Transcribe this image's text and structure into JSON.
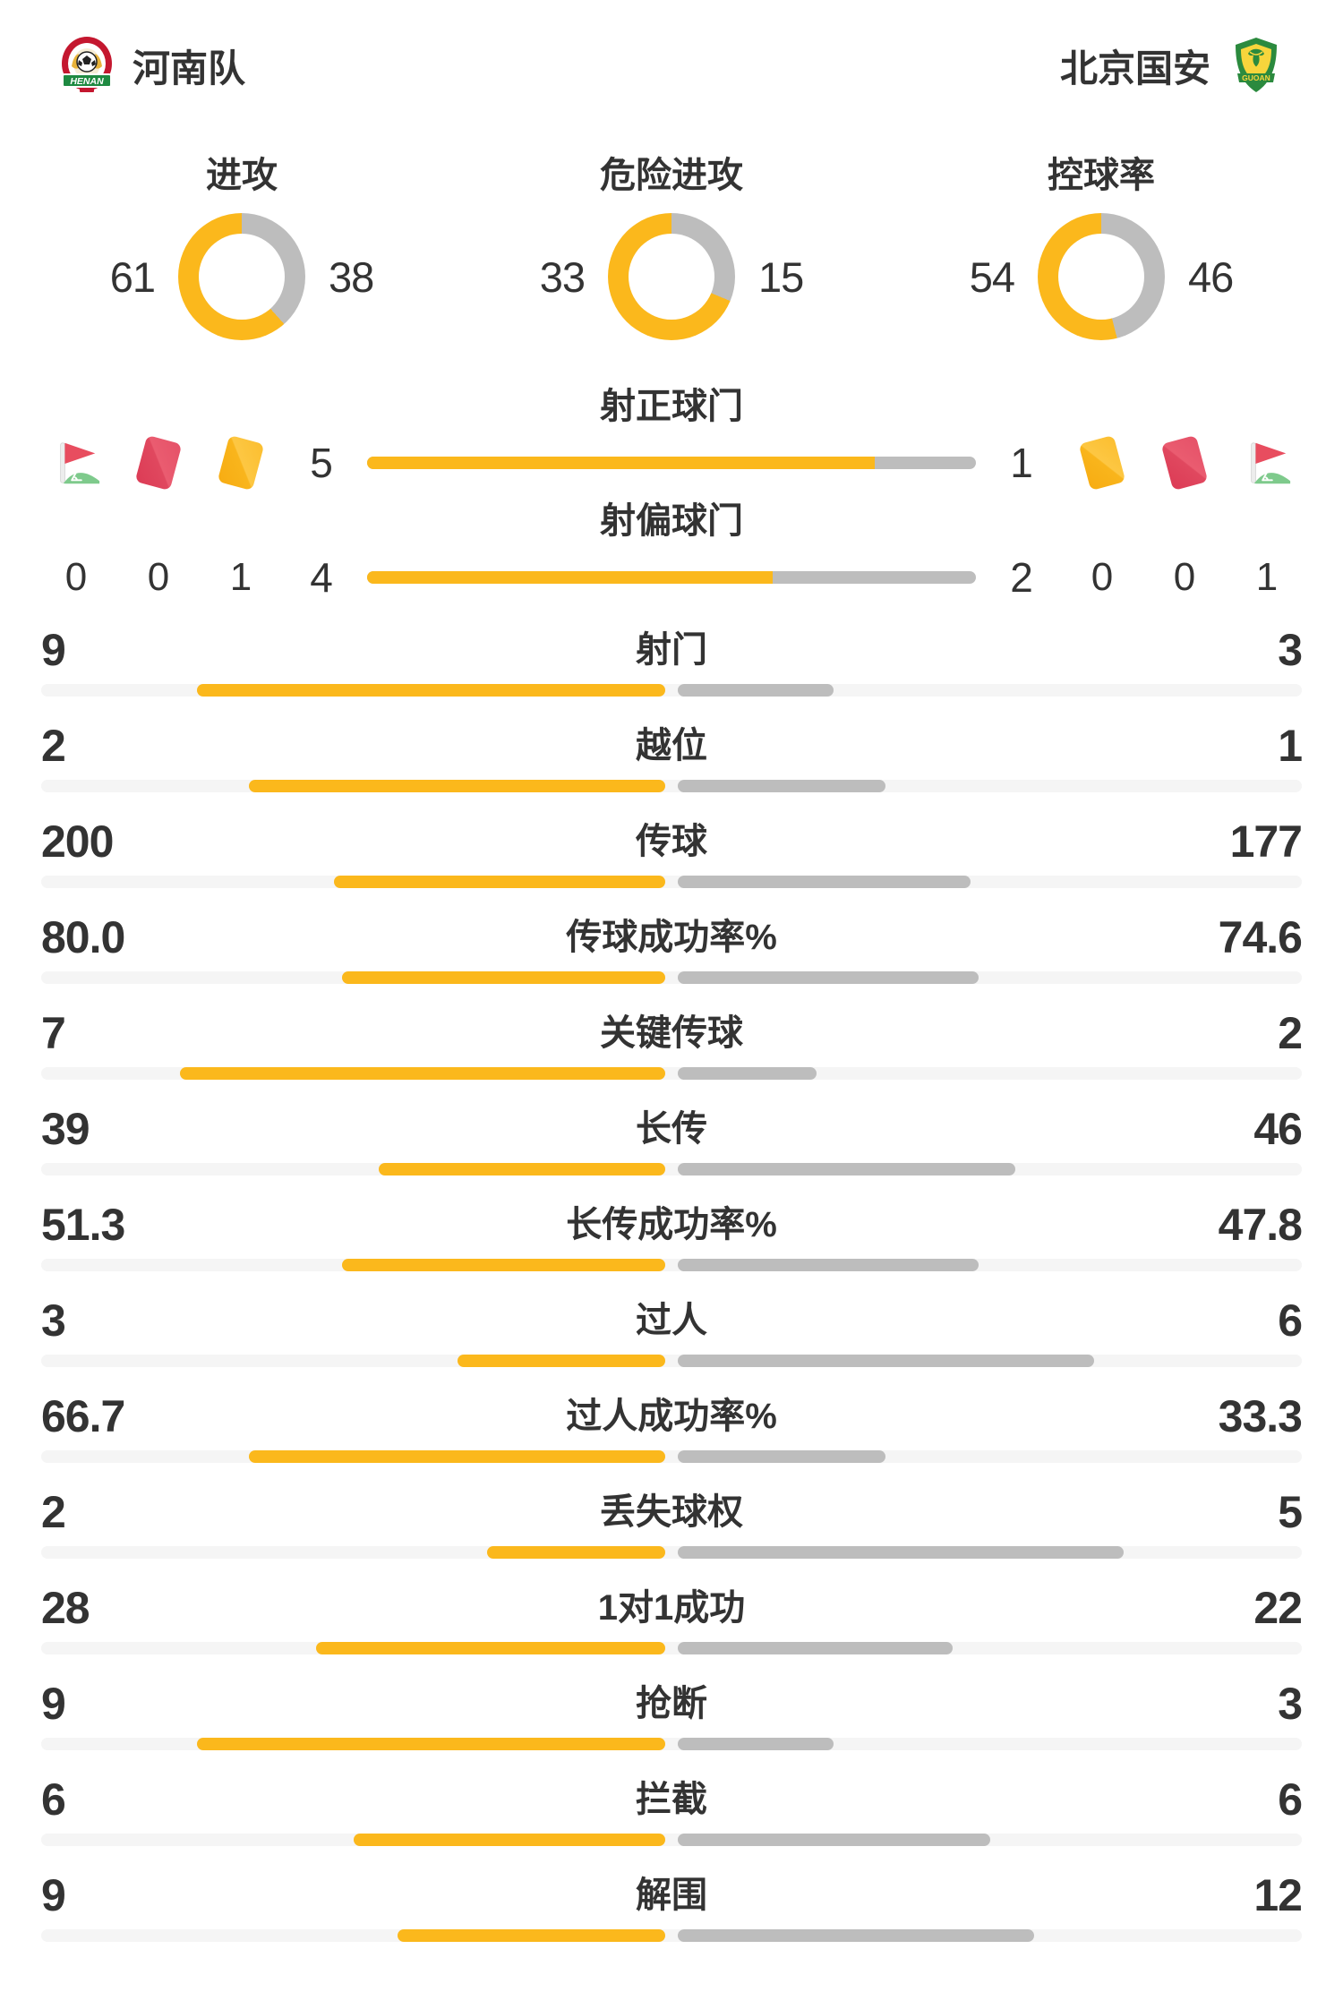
{
  "header": {
    "home_name": "河南队",
    "away_name": "北京国安",
    "home_logo": "henan-crest",
    "away_logo": "guoan-crest"
  },
  "colors": {
    "accent_yellow": "#FBB81C",
    "bar_gray": "#BDBDBD",
    "track_gray": "#F5F5F5",
    "text_dark": "#333333",
    "card_red": "#E2455B",
    "card_yellow": "#FBB81C",
    "flag_red": "#E84D5F",
    "flag_green": "#7ECA8C",
    "henan_red": "#C4172F",
    "guoan_green": "#2B8A3E"
  },
  "chart_data": {
    "type": "bar",
    "teams": [
      "河南队",
      "北京国安"
    ],
    "donuts": [
      {
        "title": "进攻",
        "home": 61,
        "away": 38
      },
      {
        "title": "危险进攻",
        "home": 33,
        "away": 15
      },
      {
        "title": "控球率",
        "home": 54,
        "away": 46
      }
    ],
    "shot_bars": [
      {
        "title": "射正球门",
        "home": 5,
        "away": 1
      },
      {
        "title": "射偏球门",
        "home": 4,
        "away": 2
      }
    ],
    "discipline": {
      "home": {
        "icons": [
          "corner-flag",
          "red-card",
          "yellow-card"
        ],
        "values": [
          "0",
          "0",
          "1"
        ]
      },
      "away": {
        "icons": [
          "yellow-card",
          "red-card",
          "corner-flag"
        ],
        "values": [
          "0",
          "0",
          "1"
        ]
      }
    },
    "stats": [
      {
        "label": "射门",
        "home": "9",
        "away": "3"
      },
      {
        "label": "越位",
        "home": "2",
        "away": "1"
      },
      {
        "label": "传球",
        "home": "200",
        "away": "177"
      },
      {
        "label": "传球成功率%",
        "home": "80.0",
        "away": "74.6"
      },
      {
        "label": "关键传球",
        "home": "7",
        "away": "2"
      },
      {
        "label": "长传",
        "home": "39",
        "away": "46"
      },
      {
        "label": "长传成功率%",
        "home": "51.3",
        "away": "47.8"
      },
      {
        "label": "过人",
        "home": "3",
        "away": "6"
      },
      {
        "label": "过人成功率%",
        "home": "66.7",
        "away": "33.3"
      },
      {
        "label": "丢失球权",
        "home": "2",
        "away": "5"
      },
      {
        "label": "1对1成功",
        "home": "28",
        "away": "22"
      },
      {
        "label": "抢断",
        "home": "9",
        "away": "3"
      },
      {
        "label": "拦截",
        "home": "6",
        "away": "6"
      },
      {
        "label": "解围",
        "home": "9",
        "away": "12"
      }
    ]
  }
}
